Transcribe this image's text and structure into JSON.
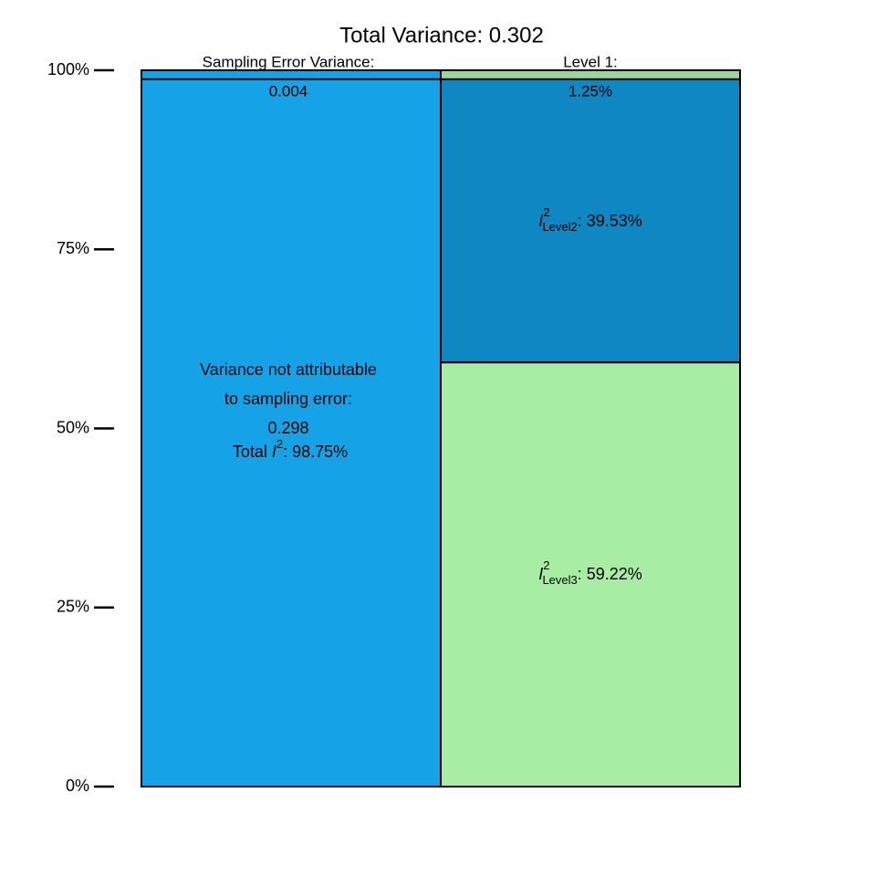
{
  "chart_data": {
    "type": "bar",
    "stacked": true,
    "title": "Total Variance: 0.302",
    "categories": [
      null,
      null
    ],
    "series": [
      {
        "color": "#15a2e7",
        "values": [
          98.75,
          null
        ]
      },
      {
        "color": "#15a2e7",
        "values": [
          1.25,
          null
        ]
      },
      {
        "color": "#a8eda4",
        "values": [
          null,
          59.22
        ]
      },
      {
        "color": "#0f87c2",
        "values": [
          null,
          39.53
        ]
      },
      {
        "color": "#9ad69a",
        "values": [
          null,
          1.25
        ]
      }
    ],
    "ylim": [
      0,
      100
    ],
    "yticks": [
      {
        "value": 0,
        "label": "0%"
      },
      {
        "value": 25,
        "label": "25%"
      },
      {
        "value": 50,
        "label": "50%"
      },
      {
        "value": 75,
        "label": "75%"
      },
      {
        "value": 100,
        "label": "100%"
      }
    ],
    "grid": false,
    "annotations": {
      "sampling_error": [
        "Sampling Error Variance:",
        "0.004"
      ],
      "level1": [
        "Level 1:",
        "1.25%"
      ],
      "not_sampling": [
        "Variance not attributable",
        "to sampling error:",
        "0.298"
      ],
      "total_i2": {
        "prefix": "Total ",
        "symbol": "I",
        "sup": "2",
        "text": ": 98.75%"
      },
      "level2": {
        "symbol": "I",
        "sup": "2",
        "sub": "Level2",
        "text": ": 39.53%"
      },
      "level3": {
        "symbol": "I",
        "sup": "2",
        "sub": "Level3",
        "text": ": 59.22%"
      }
    }
  }
}
